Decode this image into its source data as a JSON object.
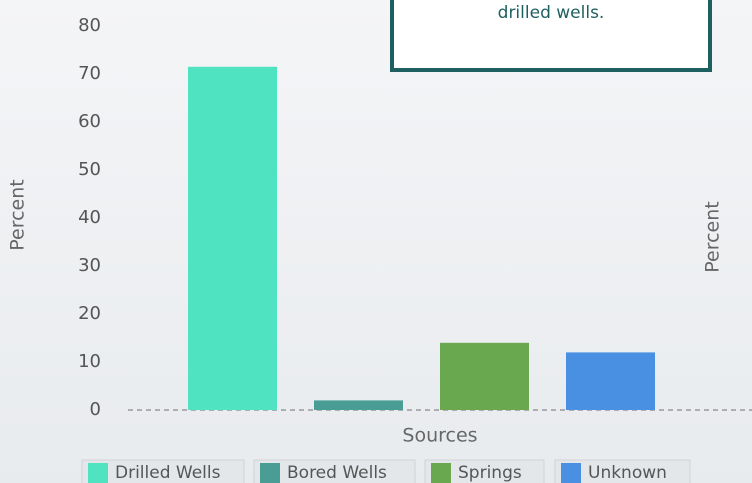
{
  "chart_data": {
    "type": "bar",
    "annotation": "drilled wells.",
    "x_label": "Sources",
    "y_label": "Percent",
    "y2_label": "Percent",
    "categories": [
      "Drilled Wells",
      "Bored Wells",
      "Springs",
      "Unknown"
    ],
    "values": [
      71.5,
      2,
      14,
      12
    ],
    "colors": [
      "#50e3c2",
      "#4a9d94",
      "#6aa84f",
      "#4a90e2"
    ],
    "ylim": [
      0,
      80
    ],
    "yticks": [
      0,
      10,
      20,
      30,
      40,
      50,
      60,
      70,
      80
    ],
    "legend": "bottom"
  }
}
